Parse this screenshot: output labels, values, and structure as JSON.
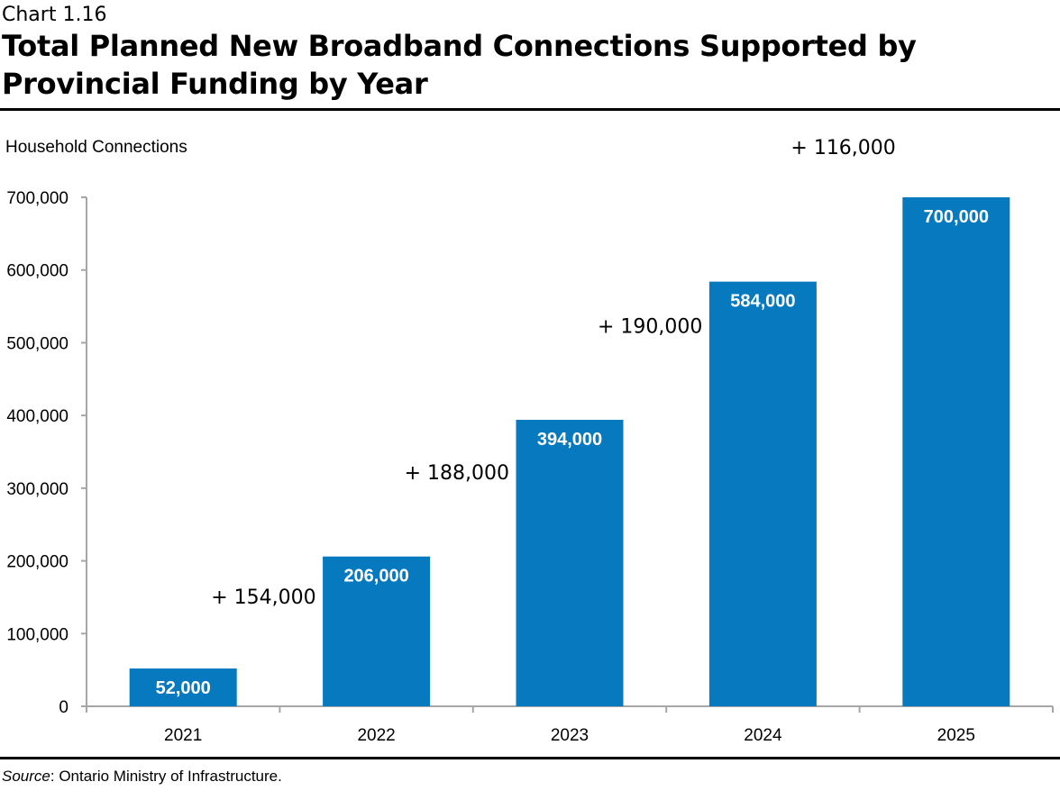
{
  "header": {
    "chart_number": "Chart 1.16",
    "title": "Total Planned New Broadband Connections Supported by Provincial Funding by Year"
  },
  "footer": {
    "source_label": "Source",
    "source_text": ": Ontario Ministry of Infrastructure."
  },
  "chart_data": {
    "type": "bar",
    "title": "Total Planned New Broadband Connections Supported by Provincial Funding by Year",
    "ylabel": "Household Connections",
    "xlabel": "",
    "categories": [
      "2021",
      "2022",
      "2023",
      "2024",
      "2025"
    ],
    "values": [
      52000,
      206000,
      394000,
      584000,
      700000
    ],
    "data_labels": [
      "52,000",
      "206,000",
      "394,000",
      "584,000",
      "700,000"
    ],
    "increments": [
      "+ 154,000",
      "+ 188,000",
      "+ 190,000",
      "+ 116,000"
    ],
    "ylim": [
      0,
      700000
    ],
    "yticks": [
      0,
      100000,
      200000,
      300000,
      400000,
      500000,
      600000,
      700000
    ],
    "ytick_labels": [
      "0",
      "100,000",
      "200,000",
      "300,000",
      "400,000",
      "500,000",
      "600,000",
      "700,000"
    ],
    "grid": false,
    "legend": "none",
    "bar_color": "#0779BF"
  }
}
